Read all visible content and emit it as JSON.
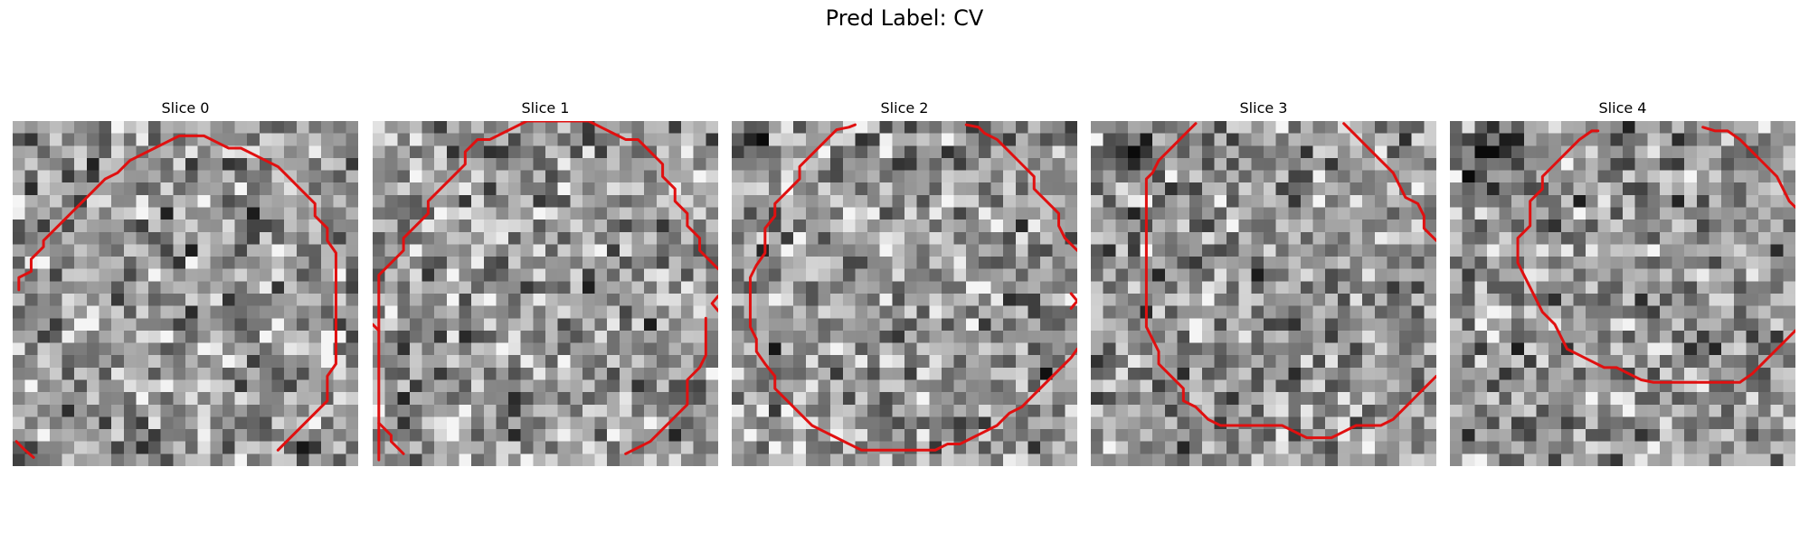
{
  "title": "Pred Label: CV",
  "colors": {
    "contour": "#e01010"
  },
  "image": {
    "grid": 28
  },
  "slices": [
    {
      "label": "Slice 0",
      "dark_blobs": [],
      "contours": [
        [
          [
            0.5,
            13.7
          ],
          [
            0.5,
            12.7
          ],
          [
            1.5,
            12.2
          ],
          [
            1.5,
            11.2
          ],
          [
            2.5,
            10.2
          ],
          [
            2.5,
            9.7
          ],
          [
            3.5,
            8.7
          ],
          [
            4.5,
            7.7
          ],
          [
            5.5,
            6.7
          ],
          [
            6.5,
            5.7
          ],
          [
            7.5,
            4.7
          ],
          [
            8.5,
            4.2
          ],
          [
            9.5,
            3.2
          ],
          [
            10.5,
            2.7
          ],
          [
            11.5,
            2.2
          ],
          [
            12.5,
            1.7
          ],
          [
            13.5,
            1.2
          ],
          [
            14.5,
            1.2
          ],
          [
            15.5,
            1.2
          ],
          [
            16.5,
            1.7
          ],
          [
            17.5,
            2.2
          ],
          [
            18.5,
            2.2
          ],
          [
            19.5,
            2.7
          ],
          [
            20.5,
            3.2
          ],
          [
            21.5,
            3.7
          ],
          [
            22.5,
            4.7
          ],
          [
            23.5,
            5.7
          ],
          [
            24.5,
            6.7
          ],
          [
            24.5,
            7.7
          ],
          [
            25.5,
            8.7
          ],
          [
            25.5,
            9.7
          ],
          [
            26.2,
            10.7
          ],
          [
            26.2,
            11.7
          ],
          [
            26.2,
            12.7
          ],
          [
            26.2,
            13.7
          ],
          [
            26.2,
            14.7
          ],
          [
            26.2,
            15.7
          ],
          [
            26.2,
            16.7
          ],
          [
            26.2,
            17.7
          ],
          [
            26.2,
            18.7
          ],
          [
            26.2,
            19.7
          ],
          [
            25.5,
            20.7
          ],
          [
            25.5,
            21.7
          ],
          [
            25.5,
            22.7
          ],
          [
            24.5,
            23.7
          ],
          [
            23.5,
            24.7
          ],
          [
            22.5,
            25.7
          ],
          [
            21.5,
            26.7
          ]
        ],
        [
          [
            0.3,
            26.0
          ],
          [
            1.0,
            26.7
          ],
          [
            1.7,
            27.3
          ]
        ]
      ]
    },
    {
      "label": "Slice 1",
      "dark_blobs": [],
      "contours": [
        [
          [
            0.5,
            27.5
          ],
          [
            0.5,
            26.5
          ],
          [
            0.5,
            25.5
          ],
          [
            0.5,
            24.5
          ],
          [
            0.5,
            23.5
          ],
          [
            0.5,
            22.5
          ],
          [
            0.5,
            21.5
          ],
          [
            0.5,
            20.5
          ],
          [
            0.5,
            19.5
          ],
          [
            0.5,
            18.5
          ],
          [
            0.5,
            17.5
          ],
          [
            0.5,
            16.5
          ],
          [
            0.5,
            15.5
          ],
          [
            0.5,
            14.5
          ],
          [
            0.5,
            13.5
          ],
          [
            0.5,
            12.5
          ],
          [
            1.5,
            11.5
          ],
          [
            2.5,
            10.5
          ],
          [
            2.5,
            9.5
          ],
          [
            3.5,
            8.5
          ],
          [
            4.5,
            7.5
          ],
          [
            4.5,
            6.5
          ],
          [
            5.5,
            5.5
          ],
          [
            6.5,
            4.5
          ],
          [
            7.5,
            3.5
          ],
          [
            7.5,
            2.5
          ],
          [
            8.5,
            1.5
          ],
          [
            9.5,
            1.5
          ],
          [
            10.5,
            1.0
          ],
          [
            11.5,
            0.5
          ],
          [
            12.5,
            0.0
          ],
          [
            13.5,
            0.0
          ],
          [
            14.5,
            0.0
          ],
          [
            15.5,
            0.0
          ],
          [
            16.5,
            0.0
          ],
          [
            17.5,
            0.0
          ],
          [
            18.5,
            0.5
          ],
          [
            19.5,
            1.0
          ],
          [
            20.5,
            1.5
          ],
          [
            21.5,
            1.5
          ],
          [
            22.5,
            2.5
          ],
          [
            23.5,
            3.5
          ],
          [
            23.5,
            4.5
          ],
          [
            24.5,
            5.5
          ],
          [
            24.5,
            6.5
          ],
          [
            25.5,
            7.5
          ],
          [
            25.5,
            8.5
          ],
          [
            26.5,
            9.5
          ],
          [
            26.5,
            10.5
          ],
          [
            27.5,
            11.5
          ],
          [
            28.0,
            12.0
          ]
        ],
        [
          [
            28.0,
            14.2
          ],
          [
            27.5,
            14.8
          ],
          [
            28.0,
            15.4
          ]
        ],
        [
          [
            0.0,
            16.5
          ],
          [
            0.5,
            17.0
          ]
        ],
        [
          [
            20.5,
            27.0
          ],
          [
            21.5,
            26.5
          ],
          [
            22.5,
            26.0
          ],
          [
            23.5,
            25.0
          ],
          [
            24.5,
            24.0
          ],
          [
            25.5,
            23.0
          ],
          [
            25.5,
            22.0
          ],
          [
            25.5,
            21.0
          ],
          [
            26.5,
            20.0
          ],
          [
            27.0,
            19.0
          ],
          [
            27.0,
            18.0
          ],
          [
            27.0,
            17.0
          ],
          [
            27.0,
            16.0
          ]
        ],
        [
          [
            0.5,
            24.5
          ],
          [
            1.5,
            25.5
          ],
          [
            1.5,
            26.0
          ],
          [
            2.5,
            27.0
          ]
        ]
      ]
    },
    {
      "label": "Slice 2",
      "dark_blobs": [
        {
          "cx": 1.5,
          "cy": 1.0,
          "r": 2.5,
          "k": -70
        }
      ],
      "contours": [
        [
          [
            10.0,
            0.3
          ],
          [
            9.5,
            0.5
          ],
          [
            8.5,
            0.7
          ],
          [
            7.5,
            1.7
          ],
          [
            6.5,
            2.7
          ],
          [
            5.5,
            3.7
          ],
          [
            5.5,
            4.7
          ],
          [
            4.5,
            5.7
          ],
          [
            3.5,
            6.7
          ],
          [
            3.5,
            7.7
          ],
          [
            2.7,
            8.7
          ],
          [
            2.7,
            9.7
          ],
          [
            2.7,
            10.7
          ],
          [
            2.0,
            11.7
          ],
          [
            1.5,
            12.7
          ],
          [
            1.5,
            13.7
          ],
          [
            1.5,
            14.7
          ],
          [
            1.5,
            15.7
          ],
          [
            1.5,
            16.7
          ],
          [
            2.0,
            17.7
          ],
          [
            2.0,
            18.7
          ],
          [
            2.7,
            19.7
          ],
          [
            3.5,
            20.7
          ],
          [
            3.5,
            21.7
          ],
          [
            4.5,
            22.7
          ],
          [
            5.5,
            23.7
          ],
          [
            6.5,
            24.7
          ],
          [
            7.5,
            25.2
          ],
          [
            8.5,
            25.7
          ],
          [
            9.5,
            26.2
          ],
          [
            10.5,
            26.7
          ],
          [
            11.5,
            26.7
          ],
          [
            12.5,
            26.7
          ],
          [
            13.5,
            26.7
          ],
          [
            14.5,
            26.7
          ],
          [
            15.5,
            26.7
          ],
          [
            16.5,
            26.7
          ],
          [
            17.5,
            26.2
          ],
          [
            18.5,
            26.2
          ],
          [
            19.5,
            25.7
          ],
          [
            20.5,
            25.2
          ],
          [
            21.5,
            24.7
          ],
          [
            22.5,
            23.7
          ],
          [
            23.5,
            23.2
          ],
          [
            24.5,
            22.2
          ],
          [
            25.5,
            21.2
          ],
          [
            26.5,
            20.2
          ],
          [
            27.5,
            19.2
          ],
          [
            28.0,
            18.5
          ]
        ],
        [
          [
            19.0,
            0.3
          ],
          [
            20.0,
            0.5
          ],
          [
            20.5,
            1.0
          ],
          [
            21.5,
            1.5
          ],
          [
            22.5,
            2.5
          ],
          [
            23.5,
            3.5
          ],
          [
            24.5,
            4.5
          ],
          [
            24.5,
            5.5
          ],
          [
            25.5,
            6.5
          ],
          [
            26.5,
            7.5
          ],
          [
            26.5,
            8.5
          ],
          [
            27.0,
            9.5
          ],
          [
            27.5,
            10.0
          ],
          [
            28.0,
            10.5
          ]
        ],
        [
          [
            27.5,
            14.0
          ],
          [
            28.0,
            14.6
          ],
          [
            27.5,
            15.2
          ]
        ]
      ]
    },
    {
      "label": "Slice 3",
      "dark_blobs": [
        {
          "cx": 2.5,
          "cy": 2.2,
          "r": 2.8,
          "k": -75
        }
      ],
      "contours": [
        [
          [
            8.5,
            0.2
          ],
          [
            7.5,
            1.2
          ],
          [
            6.5,
            2.2
          ],
          [
            5.5,
            3.2
          ],
          [
            5.0,
            4.2
          ],
          [
            4.5,
            4.7
          ],
          [
            4.5,
            5.7
          ],
          [
            4.5,
            6.7
          ],
          [
            4.5,
            7.7
          ],
          [
            4.5,
            8.7
          ],
          [
            4.5,
            9.7
          ],
          [
            4.5,
            10.7
          ],
          [
            4.5,
            11.7
          ],
          [
            4.5,
            12.7
          ],
          [
            4.5,
            13.7
          ],
          [
            4.5,
            14.7
          ],
          [
            4.5,
            15.7
          ],
          [
            4.5,
            16.7
          ],
          [
            5.0,
            17.7
          ],
          [
            5.5,
            18.7
          ],
          [
            5.5,
            19.7
          ],
          [
            6.5,
            20.7
          ],
          [
            7.5,
            21.7
          ],
          [
            7.5,
            22.7
          ],
          [
            8.5,
            23.2
          ],
          [
            9.5,
            24.2
          ],
          [
            10.5,
            24.7
          ],
          [
            11.5,
            24.7
          ],
          [
            12.5,
            24.7
          ],
          [
            13.5,
            24.7
          ],
          [
            14.5,
            24.7
          ],
          [
            15.5,
            24.7
          ],
          [
            16.5,
            25.2
          ],
          [
            17.5,
            25.7
          ],
          [
            18.5,
            25.7
          ],
          [
            19.5,
            25.7
          ],
          [
            20.5,
            25.2
          ],
          [
            21.5,
            24.7
          ],
          [
            22.5,
            24.7
          ],
          [
            23.5,
            24.7
          ],
          [
            24.5,
            24.2
          ],
          [
            25.5,
            23.2
          ],
          [
            26.5,
            22.2
          ],
          [
            27.5,
            21.2
          ],
          [
            28.0,
            20.7
          ]
        ],
        [
          [
            20.5,
            0.2
          ],
          [
            21.5,
            1.2
          ],
          [
            22.5,
            2.2
          ],
          [
            23.5,
            3.2
          ],
          [
            24.5,
            4.2
          ],
          [
            25.0,
            5.2
          ],
          [
            25.5,
            6.2
          ],
          [
            26.5,
            6.7
          ],
          [
            27.0,
            7.7
          ],
          [
            27.0,
            8.7
          ],
          [
            27.5,
            9.2
          ],
          [
            28.0,
            9.7
          ]
        ]
      ]
    },
    {
      "label": "Slice 4",
      "dark_blobs": [
        {
          "cx": 3.2,
          "cy": 2.0,
          "r": 3.5,
          "k": -80
        },
        {
          "cx": 0.8,
          "cy": 11.0,
          "r": 3.0,
          "k": -35
        }
      ],
      "contours": [
        [
          [
            11.5,
            0.8
          ],
          [
            10.5,
            1.5
          ],
          [
            9.5,
            2.5
          ],
          [
            8.5,
            3.5
          ],
          [
            7.5,
            4.5
          ],
          [
            7.5,
            5.5
          ],
          [
            6.5,
            6.5
          ],
          [
            6.5,
            7.5
          ],
          [
            6.5,
            8.5
          ],
          [
            5.5,
            9.5
          ],
          [
            5.5,
            10.5
          ],
          [
            5.5,
            11.5
          ],
          [
            6.0,
            12.5
          ],
          [
            6.5,
            13.5
          ],
          [
            7.0,
            14.5
          ],
          [
            7.5,
            15.5
          ],
          [
            8.5,
            16.5
          ],
          [
            9.0,
            17.5
          ],
          [
            9.5,
            18.5
          ],
          [
            10.5,
            19.0
          ],
          [
            11.5,
            19.5
          ],
          [
            12.5,
            20.0
          ],
          [
            13.5,
            20.0
          ],
          [
            14.5,
            20.5
          ],
          [
            15.5,
            21.0
          ],
          [
            16.5,
            21.2
          ],
          [
            17.5,
            21.2
          ],
          [
            18.5,
            21.2
          ],
          [
            19.5,
            21.2
          ],
          [
            20.5,
            21.2
          ],
          [
            21.5,
            21.2
          ],
          [
            22.5,
            21.2
          ],
          [
            23.5,
            21.2
          ],
          [
            24.5,
            20.5
          ],
          [
            25.5,
            19.5
          ],
          [
            26.5,
            18.5
          ],
          [
            27.5,
            17.5
          ],
          [
            28.0,
            17.0
          ]
        ],
        [
          [
            12.0,
            0.8
          ],
          [
            11.5,
            0.8
          ]
        ],
        [
          [
            20.5,
            0.5
          ],
          [
            21.5,
            0.8
          ],
          [
            22.5,
            0.8
          ],
          [
            23.5,
            1.5
          ],
          [
            24.5,
            2.5
          ],
          [
            25.5,
            3.5
          ],
          [
            26.5,
            4.5
          ],
          [
            27.0,
            5.5
          ],
          [
            27.5,
            6.5
          ],
          [
            28.0,
            7.0
          ]
        ]
      ]
    }
  ]
}
